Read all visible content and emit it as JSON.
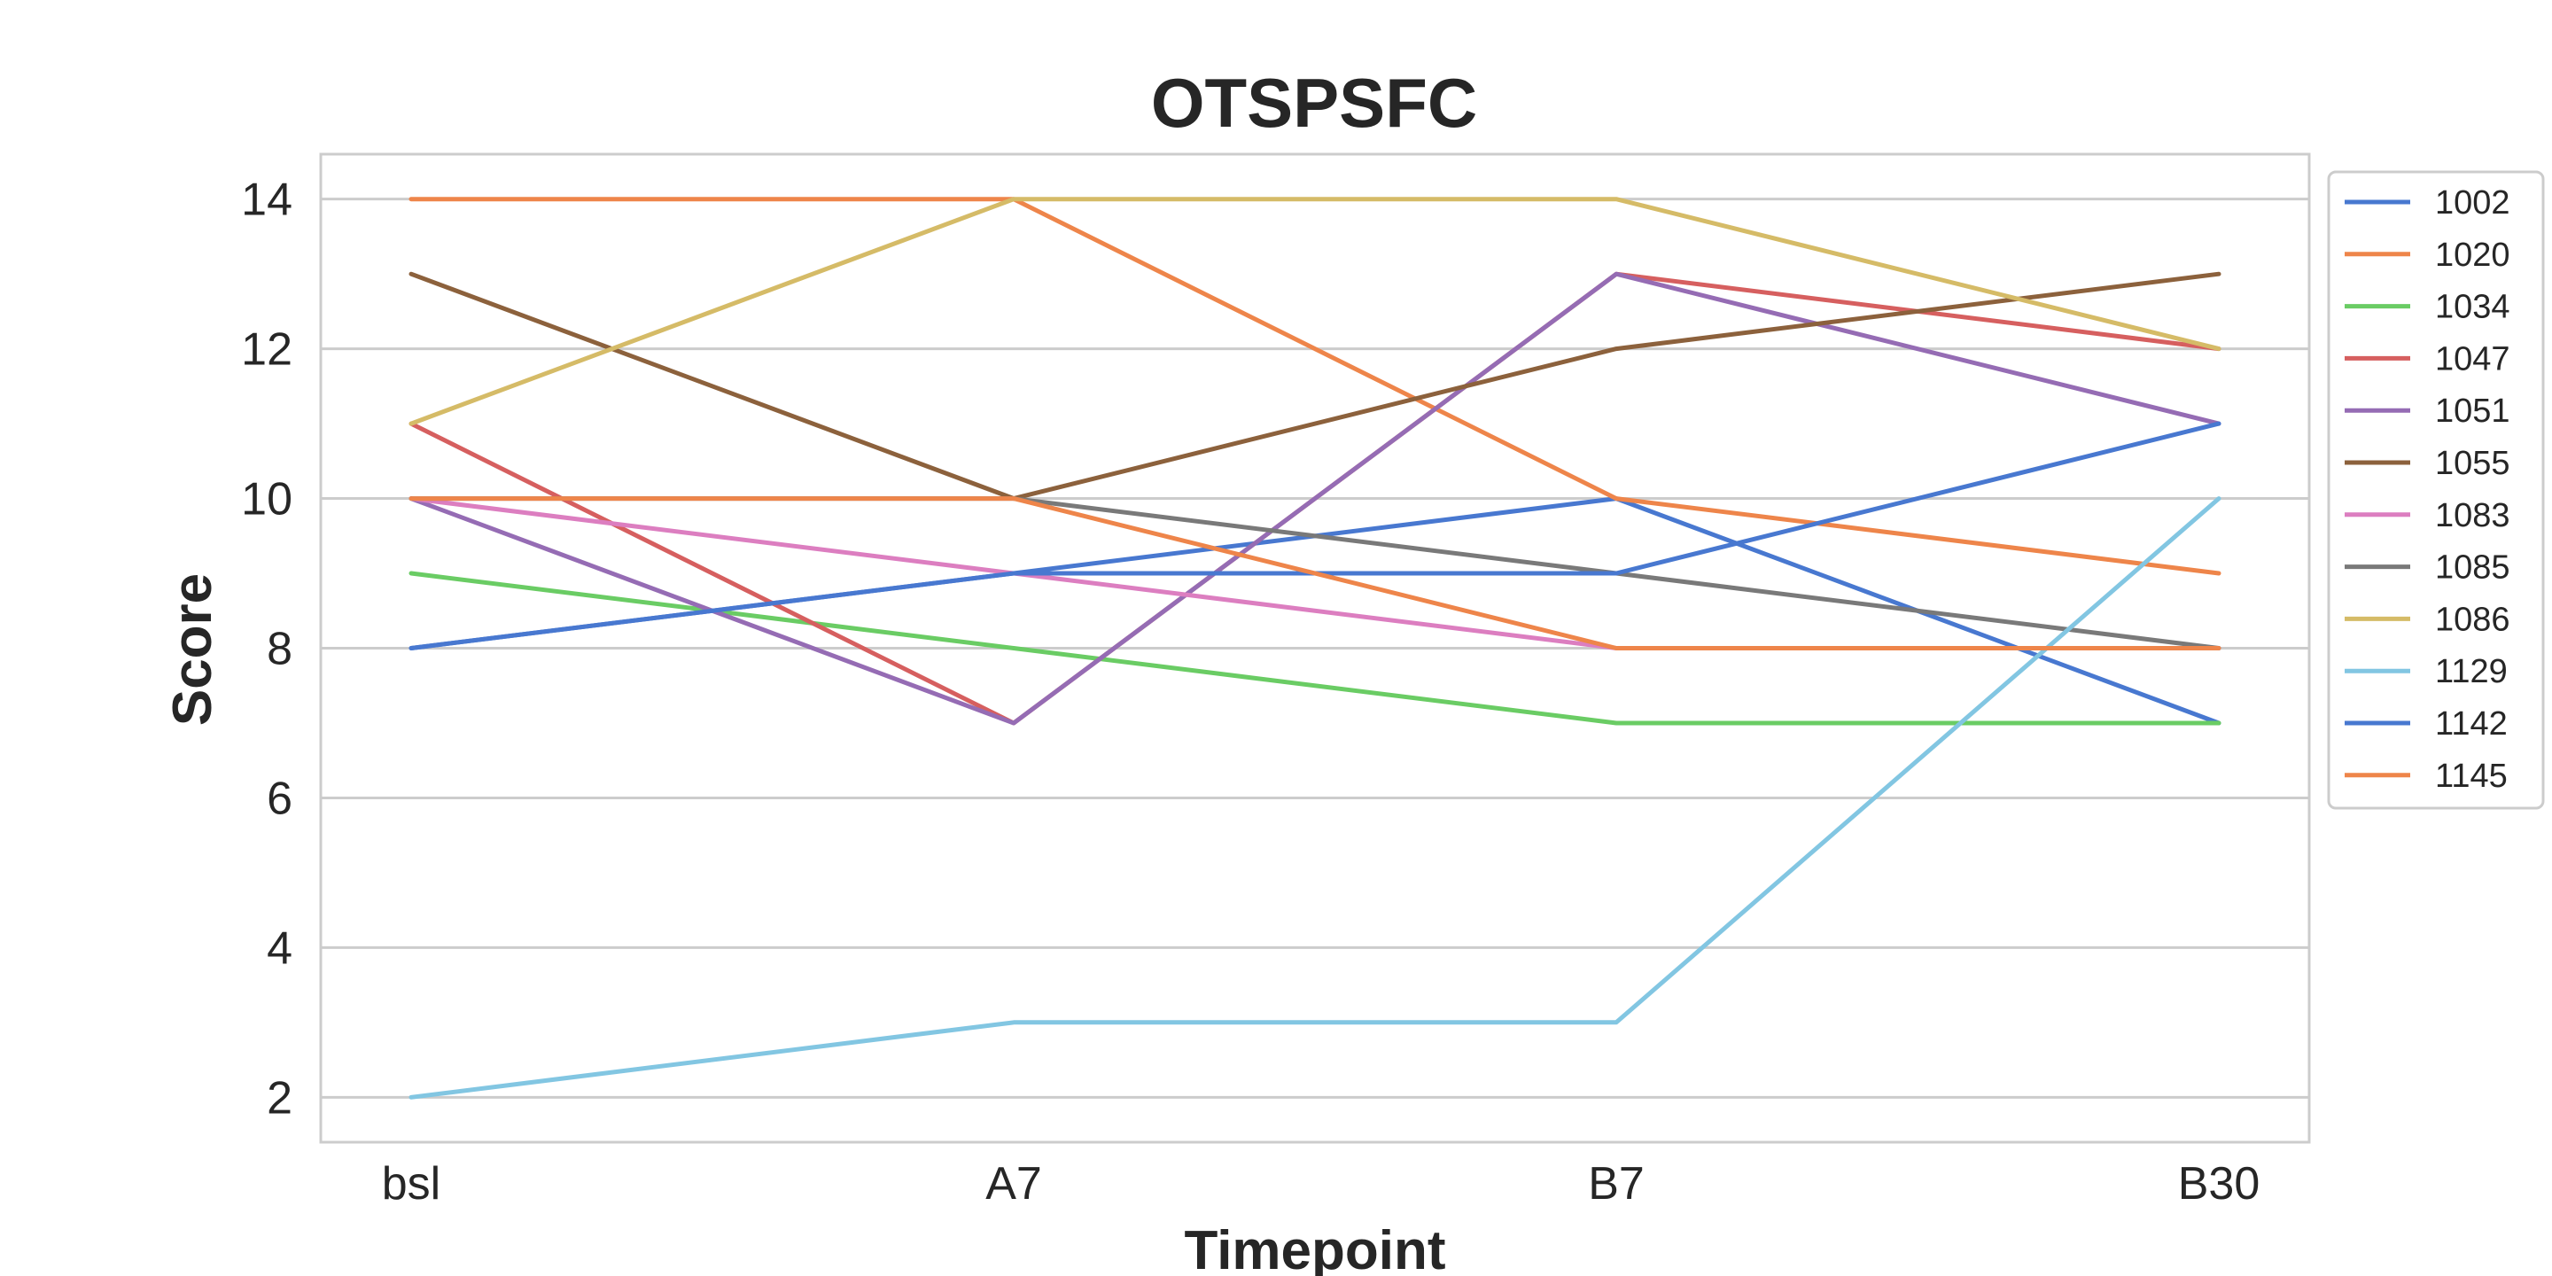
{
  "chart_data": {
    "type": "line",
    "title": "OTSPSFC",
    "xlabel": "Timepoint",
    "ylabel": "Score",
    "categories": [
      "bsl",
      "A7",
      "B7",
      "B30"
    ],
    "ylim": [
      1.4,
      14.6
    ],
    "yticks": [
      2,
      4,
      6,
      8,
      10,
      12,
      14
    ],
    "grid": "horizontal",
    "legend_position": "right-outside-top",
    "series": [
      {
        "name": "1002",
        "color": "#4878d0",
        "values": [
          8,
          9,
          10,
          7
        ]
      },
      {
        "name": "1020",
        "color": "#ee854a",
        "values": [
          14,
          14,
          10,
          9
        ]
      },
      {
        "name": "1034",
        "color": "#6acc64",
        "values": [
          9,
          8,
          7,
          7
        ]
      },
      {
        "name": "1047",
        "color": "#d65f5f",
        "values": [
          11,
          7,
          13,
          12
        ]
      },
      {
        "name": "1051",
        "color": "#956cb4",
        "values": [
          10,
          7,
          13,
          11
        ]
      },
      {
        "name": "1055",
        "color": "#8c613c",
        "values": [
          13,
          10,
          12,
          13
        ]
      },
      {
        "name": "1083",
        "color": "#dc7ec0",
        "values": [
          10,
          9,
          8,
          8
        ]
      },
      {
        "name": "1085",
        "color": "#797979",
        "values": [
          10,
          10,
          9,
          8
        ]
      },
      {
        "name": "1086",
        "color": "#d5bb67",
        "values": [
          11,
          14,
          14,
          12
        ]
      },
      {
        "name": "1129",
        "color": "#82c6e2",
        "values": [
          2,
          3,
          3,
          10
        ]
      },
      {
        "name": "1142",
        "color": "#4878d0",
        "values": [
          8,
          9,
          9,
          11
        ]
      },
      {
        "name": "1145",
        "color": "#ee854a",
        "values": [
          10,
          10,
          8,
          8
        ]
      }
    ]
  }
}
